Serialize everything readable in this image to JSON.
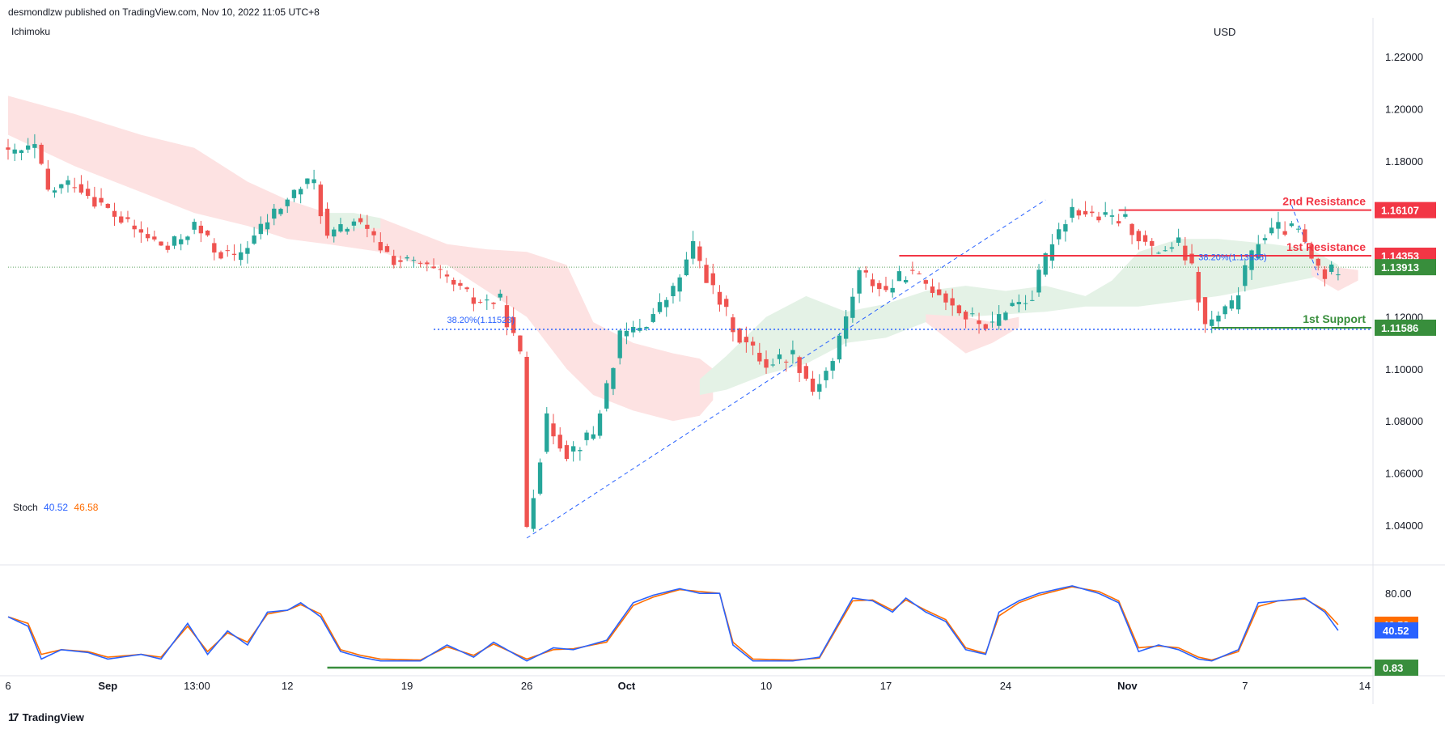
{
  "header": {
    "published": "desmondlzw published on TradingView.com, Nov 10, 2022 11:05 UTC+8"
  },
  "main_pane": {
    "indicator_label": "Ichimoku",
    "currency": "USD"
  },
  "stoch_pane": {
    "label": "Stoch",
    "k_value": "40.52",
    "d_value": "46.58"
  },
  "brand": {
    "name": "TradingView"
  },
  "colors": {
    "up": "#26a69a",
    "down": "#ef5350",
    "resistance": "#f23645",
    "support": "#388e3c",
    "fib": "#2962ff",
    "last_price": "#388e3c",
    "stoch_k": "#2962ff",
    "stoch_d": "#ff6d00",
    "cloud_bear": "#fde2e2",
    "cloud_bull": "#e4f2e6"
  },
  "price_axis": {
    "min": 1.025,
    "max": 1.235,
    "ticks": [
      "1.22000",
      "1.20000",
      "1.18000",
      "1.16000",
      "1.14000",
      "1.12000",
      "1.10000",
      "1.08000",
      "1.06000",
      "1.04000"
    ]
  },
  "stoch_axis": {
    "ticks": [
      "80.00"
    ]
  },
  "time_axis": [
    {
      "label": "6",
      "t": 0,
      "bold": false
    },
    {
      "label": "Sep",
      "t": 15,
      "bold": true
    },
    {
      "label": "13:00",
      "t": 28.4,
      "bold": false
    },
    {
      "label": "12",
      "t": 42,
      "bold": false
    },
    {
      "label": "19",
      "t": 60,
      "bold": false
    },
    {
      "label": "26",
      "t": 78,
      "bold": false
    },
    {
      "label": "Oct",
      "t": 93,
      "bold": true
    },
    {
      "label": "10",
      "t": 114,
      "bold": false
    },
    {
      "label": "17",
      "t": 132,
      "bold": false
    },
    {
      "label": "24",
      "t": 150,
      "bold": false
    },
    {
      "label": "Nov",
      "t": 168.3,
      "bold": true
    },
    {
      "label": "7",
      "t": 186,
      "bold": false
    },
    {
      "label": "14",
      "t": 204,
      "bold": false
    }
  ],
  "price_labels": [
    {
      "text": "1.16107",
      "value": 1.16107,
      "color": "#f23645"
    },
    {
      "text": "1.14353",
      "value": 1.14353,
      "color": "#f23645"
    },
    {
      "text": "1.13913",
      "value": 1.13913,
      "color": "#388e3c"
    },
    {
      "text": "1.11586",
      "value": 1.11586,
      "color": "#388e3c"
    }
  ],
  "stoch_labels": [
    {
      "text": "46.58",
      "value": 46.58,
      "color": "#ff6d00"
    },
    {
      "text": "40.52",
      "value": 40.52,
      "color": "#2962ff"
    },
    {
      "text": "0.83",
      "value": 0.83,
      "color": "#388e3c"
    }
  ],
  "levels": [
    {
      "name": "2nd Resistance",
      "value": 1.16107,
      "from_t": 167,
      "color": "#f23645"
    },
    {
      "name": "1st Resistance",
      "value": 1.14353,
      "from_t": 134,
      "color": "#f23645"
    },
    {
      "name": "1st Support",
      "value": 1.11586,
      "from_t": 181,
      "color": "#388e3c"
    }
  ],
  "fib_labels": [
    {
      "text": "38.20%(1.11523)",
      "t": 66,
      "value": 1.11523
    },
    {
      "text": "38.20%(1.13935)",
      "t": 179,
      "value": 1.13935
    }
  ],
  "chart_data": {
    "type": "candlestick",
    "title": "",
    "x_unit": "bar index (4H bars, 6 bars per day, starting Sep 6)",
    "ylim": [
      1.025,
      1.235
    ],
    "last_price": 1.13913,
    "stoch_support": 0.83,
    "price_path": [
      [
        0,
        1.182
      ],
      [
        4,
        1.185
      ],
      [
        6,
        1.168
      ],
      [
        10,
        1.172
      ],
      [
        14,
        1.163
      ],
      [
        18,
        1.155
      ],
      [
        24,
        1.146
      ],
      [
        28,
        1.155
      ],
      [
        31,
        1.146
      ],
      [
        34,
        1.142
      ],
      [
        40,
        1.16
      ],
      [
        44,
        1.17
      ],
      [
        46,
        1.172
      ],
      [
        48,
        1.15
      ],
      [
        52,
        1.157
      ],
      [
        58,
        1.142
      ],
      [
        62,
        1.14
      ],
      [
        66,
        1.134
      ],
      [
        70,
        1.126
      ],
      [
        74,
        1.126
      ],
      [
        77,
        1.105
      ],
      [
        78,
        1.04
      ],
      [
        81,
        1.08
      ],
      [
        84,
        1.068
      ],
      [
        88,
        1.075
      ],
      [
        92,
        1.112
      ],
      [
        96,
        1.118
      ],
      [
        100,
        1.13
      ],
      [
        103,
        1.147
      ],
      [
        106,
        1.13
      ],
      [
        110,
        1.112
      ],
      [
        114,
        1.102
      ],
      [
        118,
        1.106
      ],
      [
        121,
        1.092
      ],
      [
        124,
        1.103
      ],
      [
        128,
        1.137
      ],
      [
        132,
        1.13
      ],
      [
        135,
        1.137
      ],
      [
        140,
        1.13
      ],
      [
        144,
        1.12
      ],
      [
        148,
        1.116
      ],
      [
        150,
        1.124
      ],
      [
        154,
        1.128
      ],
      [
        157,
        1.15
      ],
      [
        160,
        1.162
      ],
      [
        164,
        1.158
      ],
      [
        168,
        1.157
      ],
      [
        172,
        1.145
      ],
      [
        176,
        1.148
      ],
      [
        178,
        1.138
      ],
      [
        180,
        1.116
      ],
      [
        182,
        1.12
      ],
      [
        184,
        1.124
      ],
      [
        188,
        1.15
      ],
      [
        191,
        1.154
      ],
      [
        194,
        1.153
      ],
      [
        196,
        1.142
      ],
      [
        198,
        1.136
      ],
      [
        200,
        1.139
      ]
    ],
    "stoch_k": [
      [
        0,
        55
      ],
      [
        3,
        45
      ],
      [
        5,
        10
      ],
      [
        8,
        20
      ],
      [
        12,
        17
      ],
      [
        15,
        10
      ],
      [
        20,
        15
      ],
      [
        23,
        10
      ],
      [
        27,
        48
      ],
      [
        30,
        15
      ],
      [
        33,
        40
      ],
      [
        36,
        25
      ],
      [
        39,
        60
      ],
      [
        42,
        62
      ],
      [
        44,
        70
      ],
      [
        47,
        55
      ],
      [
        50,
        18
      ],
      [
        53,
        12
      ],
      [
        56,
        8
      ],
      [
        62,
        8
      ],
      [
        66,
        25
      ],
      [
        70,
        12
      ],
      [
        73,
        28
      ],
      [
        78,
        8
      ],
      [
        82,
        22
      ],
      [
        85,
        20
      ],
      [
        90,
        30
      ],
      [
        94,
        70
      ],
      [
        97,
        78
      ],
      [
        101,
        85
      ],
      [
        104,
        80
      ],
      [
        107,
        80
      ],
      [
        109,
        25
      ],
      [
        112,
        8
      ],
      [
        118,
        8
      ],
      [
        122,
        12
      ],
      [
        127,
        75
      ],
      [
        130,
        72
      ],
      [
        133,
        60
      ],
      [
        135,
        75
      ],
      [
        138,
        60
      ],
      [
        141,
        50
      ],
      [
        144,
        20
      ],
      [
        147,
        15
      ],
      [
        149,
        60
      ],
      [
        152,
        72
      ],
      [
        155,
        80
      ],
      [
        160,
        88
      ],
      [
        164,
        80
      ],
      [
        167,
        70
      ],
      [
        170,
        18
      ],
      [
        173,
        25
      ],
      [
        176,
        20
      ],
      [
        179,
        10
      ],
      [
        181,
        8
      ],
      [
        185,
        20
      ],
      [
        188,
        70
      ],
      [
        191,
        72
      ],
      [
        195,
        75
      ],
      [
        198,
        60
      ],
      [
        200,
        40.52
      ]
    ],
    "stoch_d": [
      [
        0,
        55
      ],
      [
        3,
        48
      ],
      [
        5,
        15
      ],
      [
        8,
        20
      ],
      [
        12,
        18
      ],
      [
        15,
        12
      ],
      [
        20,
        15
      ],
      [
        23,
        12
      ],
      [
        27,
        45
      ],
      [
        30,
        18
      ],
      [
        33,
        38
      ],
      [
        36,
        28
      ],
      [
        39,
        58
      ],
      [
        42,
        62
      ],
      [
        44,
        68
      ],
      [
        47,
        58
      ],
      [
        50,
        20
      ],
      [
        53,
        14
      ],
      [
        56,
        10
      ],
      [
        62,
        9
      ],
      [
        66,
        23
      ],
      [
        70,
        14
      ],
      [
        73,
        26
      ],
      [
        78,
        10
      ],
      [
        82,
        20
      ],
      [
        85,
        21
      ],
      [
        90,
        28
      ],
      [
        94,
        67
      ],
      [
        97,
        76
      ],
      [
        101,
        84
      ],
      [
        104,
        82
      ],
      [
        107,
        80
      ],
      [
        109,
        28
      ],
      [
        112,
        10
      ],
      [
        118,
        9
      ],
      [
        122,
        11
      ],
      [
        127,
        72
      ],
      [
        130,
        73
      ],
      [
        133,
        62
      ],
      [
        135,
        73
      ],
      [
        138,
        62
      ],
      [
        141,
        52
      ],
      [
        144,
        22
      ],
      [
        147,
        16
      ],
      [
        149,
        56
      ],
      [
        152,
        70
      ],
      [
        155,
        78
      ],
      [
        160,
        87
      ],
      [
        164,
        82
      ],
      [
        167,
        72
      ],
      [
        170,
        22
      ],
      [
        173,
        24
      ],
      [
        176,
        22
      ],
      [
        179,
        12
      ],
      [
        181,
        9
      ],
      [
        185,
        18
      ],
      [
        188,
        66
      ],
      [
        191,
        72
      ],
      [
        195,
        74
      ],
      [
        198,
        62
      ],
      [
        200,
        46.58
      ]
    ]
  }
}
